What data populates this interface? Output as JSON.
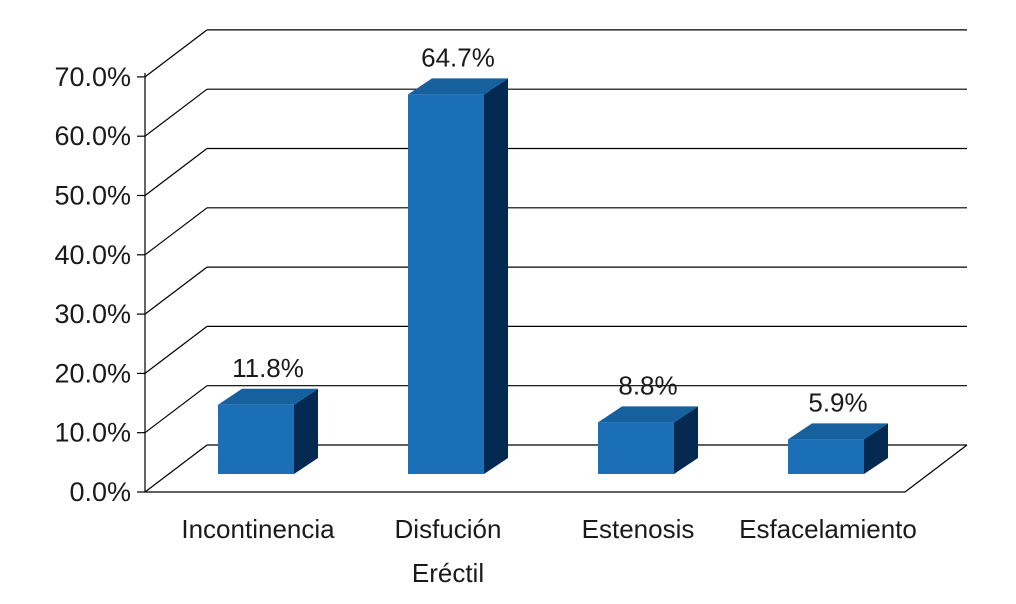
{
  "chart_data": {
    "type": "bar",
    "categories": [
      [
        "Incontinencia"
      ],
      [
        "Disfución",
        "Eréctil"
      ],
      [
        "Estenosis"
      ],
      [
        "Esfacelamiento"
      ]
    ],
    "values": [
      11.8,
      64.7,
      8.8,
      5.9
    ],
    "data_labels": [
      "11.8%",
      "64.7%",
      "8.8%",
      "5.9%"
    ],
    "y_ticks": [
      "0.0%",
      "10.0%",
      "20.0%",
      "30.0%",
      "40.0%",
      "50.0%",
      "60.0%",
      "70.0%"
    ],
    "ylim": [
      0,
      70
    ],
    "grid": true,
    "three_d": true,
    "colors": {
      "front": "#1b6fb6",
      "top": "#17609e",
      "side": "#052a52",
      "grid": "#000000"
    },
    "title": "",
    "xlabel": "",
    "ylabel": ""
  }
}
